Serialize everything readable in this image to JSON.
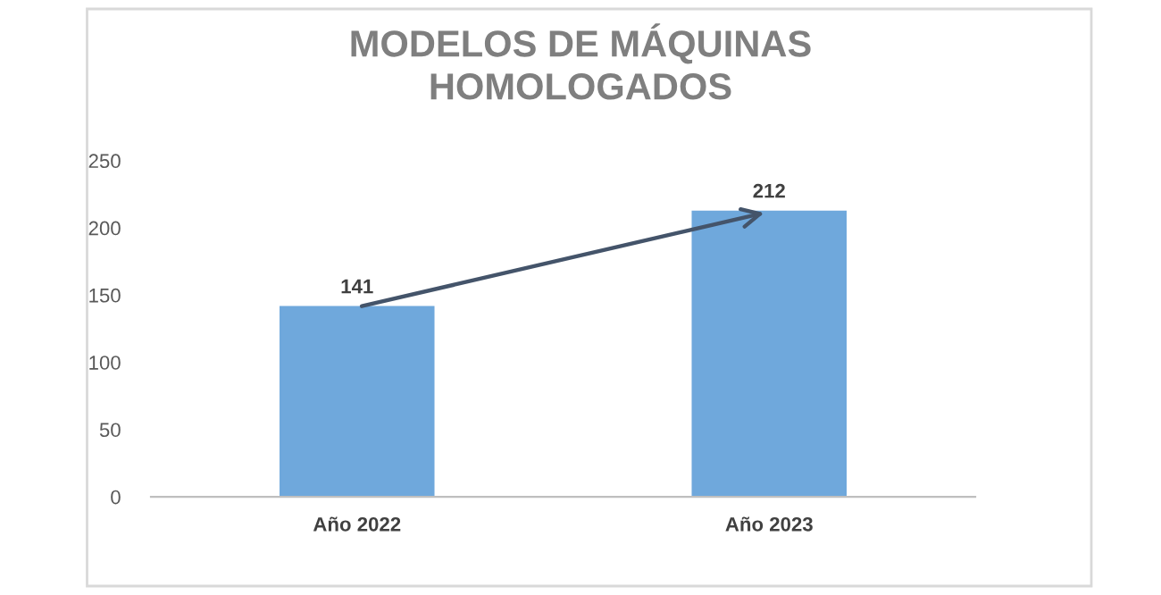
{
  "chart_data": {
    "type": "bar",
    "title": "MODELOS DE MÁQUINAS\nHOMOLOGADOS",
    "categories": [
      "Año 2022",
      "Año 2023"
    ],
    "values": [
      141,
      212
    ],
    "color": "#6fa8dc",
    "ylim": [
      0,
      250
    ],
    "yticks": [
      0,
      50,
      100,
      150,
      200,
      250
    ],
    "grid": false,
    "data_labels": true
  }
}
